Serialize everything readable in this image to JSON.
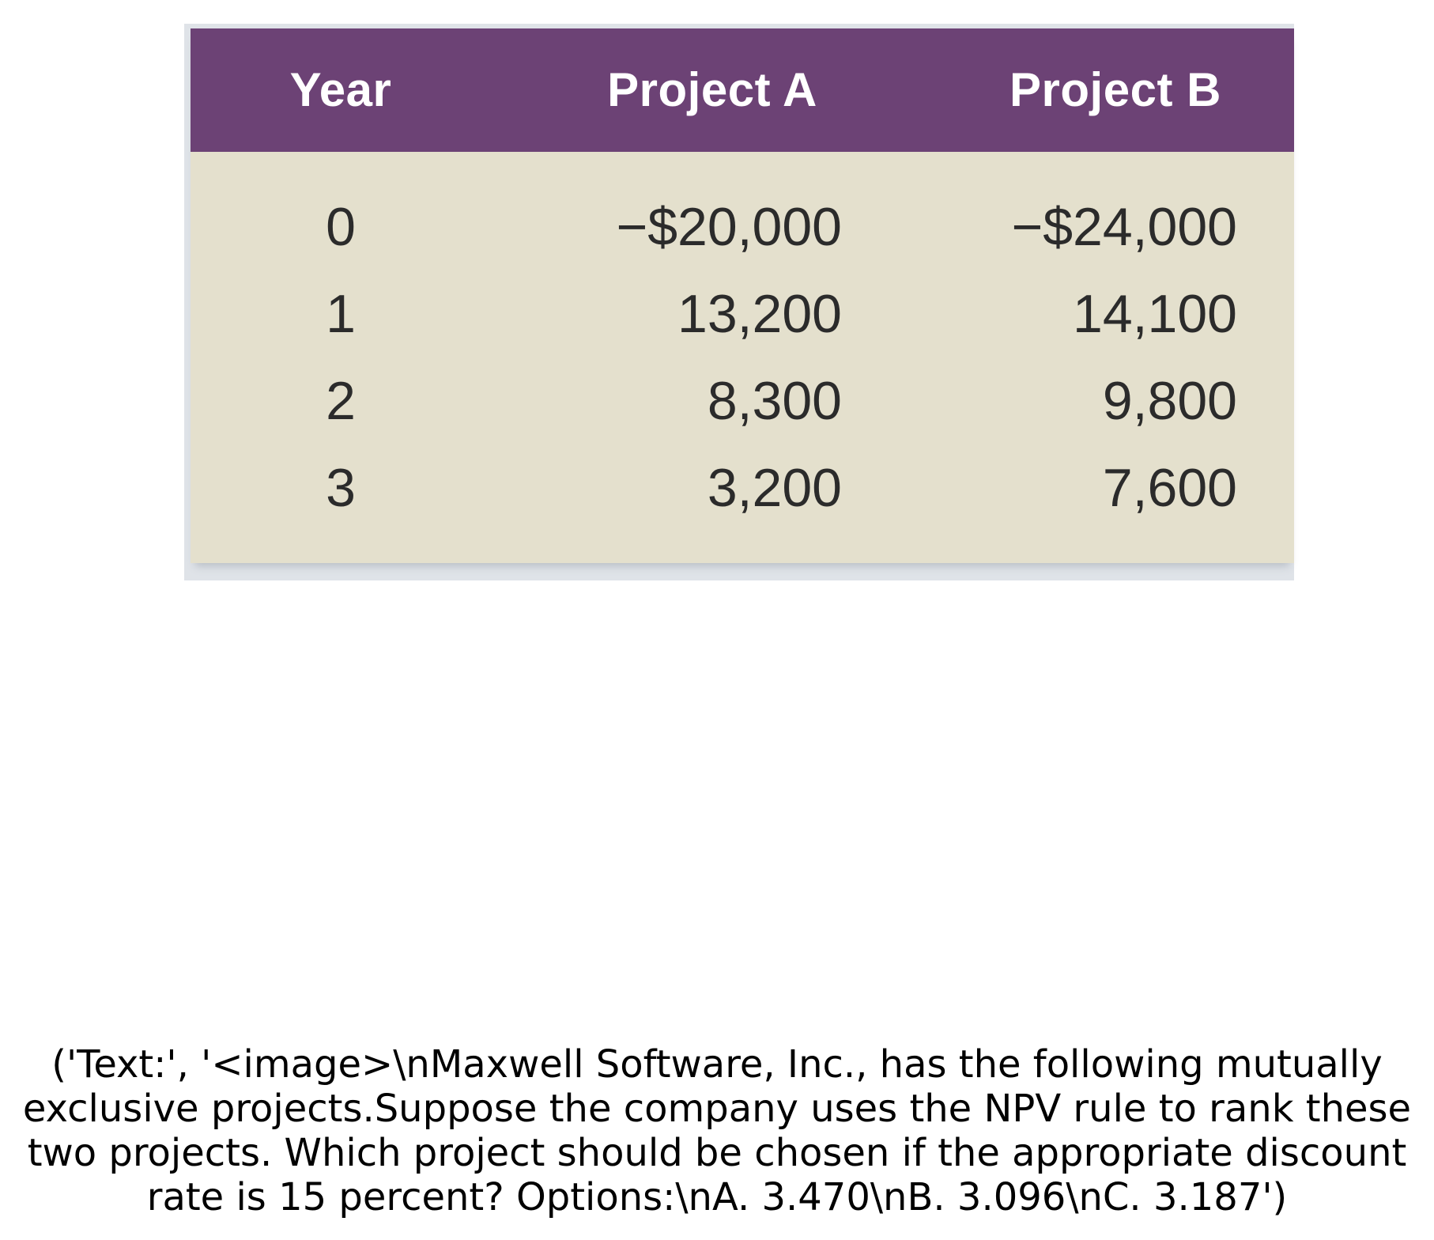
{
  "table": {
    "headers": {
      "year": "Year",
      "project_a": "Project A",
      "project_b": "Project B"
    },
    "rows": [
      {
        "year": "0",
        "project_a": "−$20,000",
        "project_b": "−$24,000"
      },
      {
        "year": "1",
        "project_a": "13,200",
        "project_b": "14,100"
      },
      {
        "year": "2",
        "project_a": "8,300",
        "project_b": "9,800"
      },
      {
        "year": "3",
        "project_a": "3,200",
        "project_b": "7,600"
      }
    ],
    "colors": {
      "header_background": "#6c4275",
      "body_background": "#e4e0cd",
      "header_text": "#ffffff",
      "body_text": "#2b2b2b"
    }
  },
  "question": {
    "text": "('Text:', '<image>\\nMaxwell Software, Inc., has the following mutually exclusive projects.Suppose the company uses the NPV rule to rank these two projects. Which project should be chosen if the appropriate discount rate is 15 percent? Options:\\nA. 3.470\\nB. 3.096\\nC. 3.187')"
  }
}
